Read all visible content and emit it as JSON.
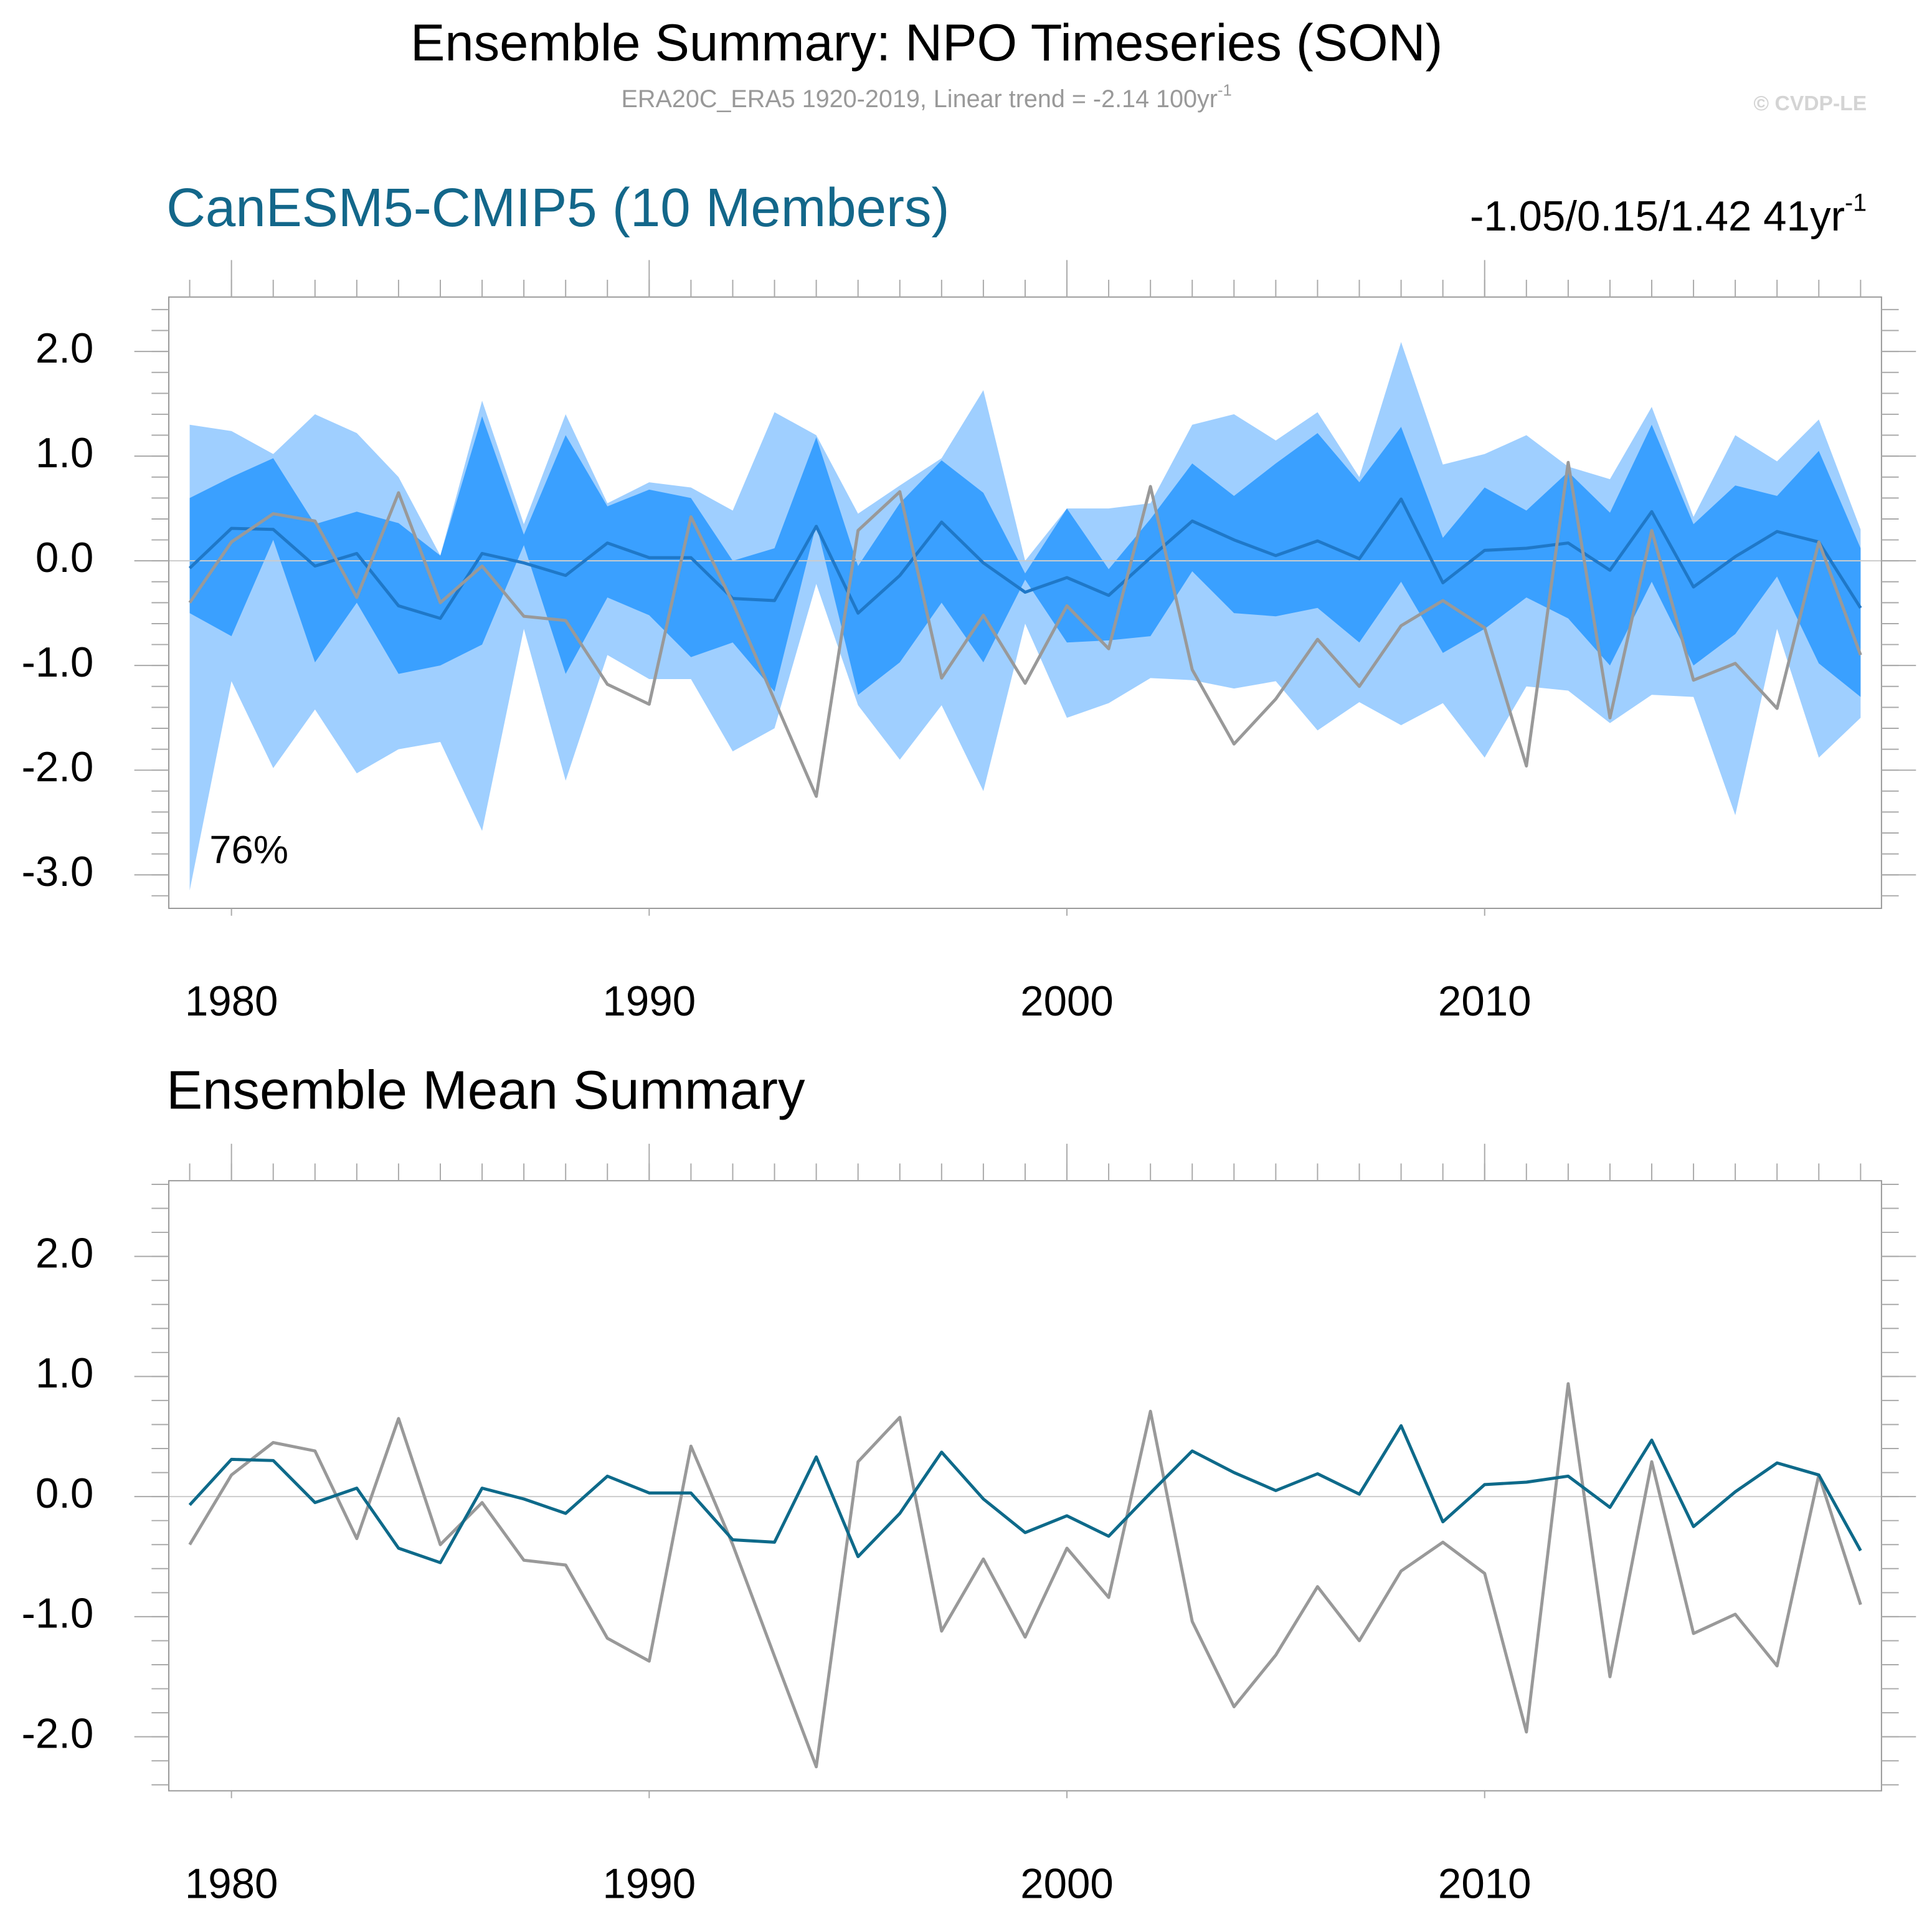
{
  "title": "Ensemble Summary: NPO Timeseries (SON)",
  "subtitle": {
    "text": "ERA20C_ERA5 1920-2019, Linear trend = -2.14 100yr",
    "superscript": "-1"
  },
  "watermark": "© CVDP-LE",
  "chart_data": [
    {
      "type": "area",
      "title": "CanESM5-CMIP5 (10 Members)",
      "title_color": "#13678a",
      "stats": {
        "text": "-1.05/0.15/1.42 41yr",
        "superscript": "-1"
      },
      "annotation": "76%",
      "x": [
        1979,
        1980,
        1981,
        1982,
        1983,
        1984,
        1985,
        1986,
        1987,
        1988,
        1989,
        1990,
        1991,
        1992,
        1993,
        1994,
        1995,
        1996,
        1997,
        1998,
        1999,
        2000,
        2001,
        2002,
        2003,
        2004,
        2005,
        2006,
        2007,
        2008,
        2009,
        2010,
        2011,
        2012,
        2013,
        2014,
        2015,
        2016,
        2017,
        2018,
        2019
      ],
      "xlim": [
        1978.5,
        2019.5
      ],
      "xticks": [
        1980,
        1990,
        2000,
        2010
      ],
      "ylim": [
        -3.32,
        2.52
      ],
      "yticks": [
        {
          "value": 2,
          "label": "2.0"
        },
        {
          "value": 1,
          "label": "1.0"
        },
        {
          "value": 0,
          "label": "0.0"
        },
        {
          "value": -1,
          "label": "-1.0"
        },
        {
          "value": -2,
          "label": "-2.0"
        },
        {
          "value": -3,
          "label": "-3.0"
        }
      ],
      "hline": 0,
      "bands": [
        {
          "color": "#9fcfff",
          "lower": [
            -3.15,
            -1.15,
            -1.98,
            -1.42,
            -2.03,
            -1.8,
            -1.73,
            -2.58,
            -0.65,
            -2.1,
            -0.9,
            -1.13,
            -1.13,
            -1.82,
            -1.6,
            -0.22,
            -1.38,
            -1.9,
            -1.38,
            -2.2,
            -0.6,
            -1.5,
            -1.36,
            -1.12,
            -1.14,
            -1.22,
            -1.15,
            -1.62,
            -1.35,
            -1.57,
            -1.36,
            -1.88,
            -1.2,
            -1.24,
            -1.55,
            -1.28,
            -1.3,
            -2.43,
            -0.65,
            -1.88,
            -1.5
          ],
          "upper": [
            1.3,
            1.24,
            1.02,
            1.4,
            1.22,
            0.8,
            0.05,
            1.53,
            0.35,
            1.4,
            0.55,
            0.75,
            0.7,
            0.48,
            1.42,
            1.2,
            0.45,
            0.72,
            0.98,
            1.63,
            0.0,
            0.5,
            0.5,
            0.55,
            1.3,
            1.4,
            1.15,
            1.42,
            0.8,
            2.09,
            0.92,
            1.02,
            1.2,
            0.9,
            0.78,
            1.47,
            0.42,
            1.2,
            0.95,
            1.35,
            0.3
          ]
        },
        {
          "color": "#3aa0ff",
          "lower": [
            -0.5,
            -0.72,
            0.2,
            -0.97,
            -0.4,
            -1.08,
            -1.0,
            -0.8,
            0.15,
            -1.08,
            -0.35,
            -0.52,
            -0.92,
            -0.78,
            -1.25,
            0.35,
            -1.28,
            -0.97,
            -0.4,
            -0.97,
            -0.18,
            -0.78,
            -0.76,
            -0.72,
            -0.1,
            -0.5,
            -0.53,
            -0.45,
            -0.78,
            -0.2,
            -0.88,
            -0.65,
            -0.35,
            -0.55,
            -1.0,
            -0.2,
            -1.0,
            -0.7,
            -0.15,
            -0.98,
            -1.3
          ],
          "upper": [
            0.6,
            0.8,
            0.98,
            0.35,
            0.47,
            0.36,
            0.05,
            1.38,
            0.25,
            1.2,
            0.52,
            0.68,
            0.6,
            0.0,
            0.12,
            1.18,
            -0.05,
            0.55,
            0.96,
            0.65,
            -0.12,
            0.5,
            -0.08,
            0.4,
            0.93,
            0.62,
            0.93,
            1.22,
            0.75,
            1.28,
            0.22,
            0.7,
            0.48,
            0.85,
            0.46,
            1.3,
            0.35,
            0.72,
            0.62,
            1.05,
            0.12
          ]
        }
      ],
      "series": [
        {
          "color": "#1f78c8",
          "values": [
            -0.07,
            0.31,
            0.3,
            -0.05,
            0.07,
            -0.43,
            -0.55,
            0.07,
            -0.02,
            -0.14,
            0.17,
            0.03,
            0.03,
            -0.36,
            -0.38,
            0.33,
            -0.5,
            -0.14,
            0.37,
            -0.02,
            -0.3,
            -0.16,
            -0.33,
            0.03,
            0.38,
            0.2,
            0.05,
            0.19,
            0.02,
            0.59,
            -0.21,
            0.1,
            0.12,
            0.17,
            -0.09,
            0.47,
            -0.25,
            0.04,
            0.28,
            0.18,
            -0.45
          ]
        },
        {
          "color": "#999999",
          "values": [
            -0.4,
            0.18,
            0.45,
            0.38,
            -0.35,
            0.65,
            -0.4,
            -0.05,
            -0.53,
            -0.57,
            -1.18,
            -1.37,
            0.42,
            -0.4,
            -1.33,
            -2.25,
            0.29,
            0.66,
            -1.12,
            -0.52,
            -1.17,
            -0.43,
            -0.84,
            0.71,
            -1.04,
            -1.75,
            -1.32,
            -0.75,
            -1.2,
            -0.62,
            -0.38,
            -0.64,
            -1.96,
            0.94,
            -1.5,
            0.29,
            -1.14,
            -0.98,
            -1.41,
            0.18,
            -0.9
          ]
        }
      ]
    },
    {
      "type": "line",
      "title": "Ensemble Mean Summary",
      "title_color": "#000000",
      "x": [
        1979,
        1980,
        1981,
        1982,
        1983,
        1984,
        1985,
        1986,
        1987,
        1988,
        1989,
        1990,
        1991,
        1992,
        1993,
        1994,
        1995,
        1996,
        1997,
        1998,
        1999,
        2000,
        2001,
        2002,
        2003,
        2004,
        2005,
        2006,
        2007,
        2008,
        2009,
        2010,
        2011,
        2012,
        2013,
        2014,
        2015,
        2016,
        2017,
        2018,
        2019
      ],
      "xlim": [
        1978.5,
        2019.5
      ],
      "xticks": [
        1980,
        1990,
        2000,
        2010
      ],
      "ylim": [
        -2.45,
        2.63
      ],
      "yticks": [
        {
          "value": 2,
          "label": "2.0"
        },
        {
          "value": 1,
          "label": "1.0"
        },
        {
          "value": 0,
          "label": "0.0"
        },
        {
          "value": -1,
          "label": "-1.0"
        },
        {
          "value": -2,
          "label": "-2.0"
        }
      ],
      "hline": 0,
      "series": [
        {
          "color": "#999999",
          "values": [
            -0.4,
            0.18,
            0.45,
            0.38,
            -0.35,
            0.65,
            -0.4,
            -0.05,
            -0.53,
            -0.57,
            -1.18,
            -1.37,
            0.42,
            -0.4,
            -1.33,
            -2.25,
            0.29,
            0.66,
            -1.12,
            -0.52,
            -1.17,
            -0.43,
            -0.84,
            0.71,
            -1.04,
            -1.75,
            -1.32,
            -0.75,
            -1.2,
            -0.62,
            -0.38,
            -0.64,
            -1.96,
            0.94,
            -1.5,
            0.29,
            -1.14,
            -0.98,
            -1.41,
            0.18,
            -0.9
          ]
        },
        {
          "color": "#0e6a8a",
          "values": [
            -0.07,
            0.31,
            0.3,
            -0.05,
            0.07,
            -0.43,
            -0.55,
            0.07,
            -0.02,
            -0.14,
            0.17,
            0.03,
            0.03,
            -0.36,
            -0.38,
            0.33,
            -0.5,
            -0.14,
            0.37,
            -0.02,
            -0.3,
            -0.16,
            -0.33,
            0.03,
            0.38,
            0.2,
            0.05,
            0.19,
            0.02,
            0.59,
            -0.21,
            0.1,
            0.12,
            0.17,
            -0.09,
            0.47,
            -0.25,
            0.04,
            0.28,
            0.18,
            -0.45
          ]
        }
      ]
    }
  ]
}
